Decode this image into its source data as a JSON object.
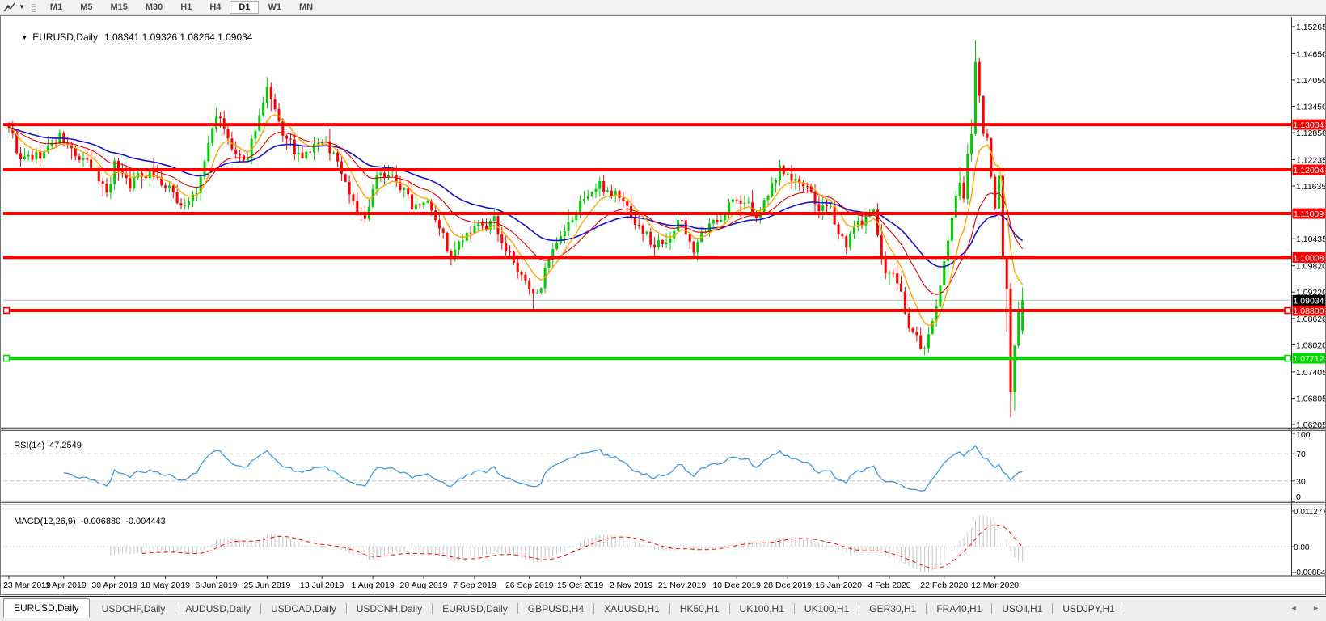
{
  "icons": {
    "title_caret": "▼",
    "dropdown_caret": "▼",
    "scroll_left": "◄",
    "scroll_right": "►"
  },
  "toolbar": {
    "timeframes": [
      "M1",
      "M5",
      "M15",
      "M30",
      "H1",
      "H4",
      "D1",
      "W1",
      "MN"
    ],
    "active_timeframe": "D1"
  },
  "chart": {
    "symbol_title": "EURUSD,Daily",
    "ohlc_text": "1.08341 1.09326 1.08264 1.09034"
  },
  "indicators": {
    "rsi": {
      "label": "RSI(14)",
      "value": "47.2549",
      "period": 14,
      "levels": [
        70,
        30
      ],
      "scale_labels": [
        "100",
        "70",
        "30",
        "0"
      ],
      "line_color": "#3E9BDD",
      "level_color": "#C4C4C4"
    },
    "macd": {
      "label": "MACD(12,26,9)",
      "main_value": "-0.006880",
      "signal_value": "-0.004443",
      "params": [
        12,
        26,
        9
      ],
      "scale_labels": [
        "0.011277",
        "0.00",
        "-0.008845"
      ],
      "histogram_color": "#C6C6C6",
      "signal_color": "#FF0000"
    }
  },
  "chart_data": {
    "type": "candlestick",
    "symbol": "EURUSD",
    "timeframe": "Daily",
    "current_bar": {
      "open": 1.08341,
      "high": 1.09326,
      "low": 1.08264,
      "close": 1.09034
    },
    "current_price": {
      "price": 1.09034,
      "label": "1.09034",
      "line_color": "#BBBBBB",
      "tag_color": "#000000"
    },
    "num_candles": 260,
    "up_color": "#00CC00",
    "down_color": "#FE0000",
    "price_axis_ticks": [
      "1.15265",
      "1.14650",
      "1.14050",
      "1.13450",
      "1.12850",
      "1.12235",
      "1.11635",
      "1.10435",
      "1.09820",
      "1.09220",
      "1.08620",
      "1.08020",
      "1.07405",
      "1.06805",
      "1.06205"
    ],
    "horizontal_lines": [
      {
        "price": 1.13034,
        "label": "1.13034",
        "color": "#FF0000",
        "handles": false
      },
      {
        "price": 1.12004,
        "label": "1.12004",
        "color": "#FF0000",
        "handles": false
      },
      {
        "price": 1.11009,
        "label": "1.11009",
        "color": "#FF0000",
        "handles": false
      },
      {
        "price": 1.10008,
        "label": "1.10008",
        "color": "#FF0000",
        "handles": false
      },
      {
        "price": 1.088,
        "label": "1.08800",
        "color": "#FF0000",
        "handles": true
      },
      {
        "price": 1.07712,
        "label": "1.07712",
        "color": "#00DC00",
        "handles": true
      }
    ],
    "moving_averages": [
      {
        "period": 40,
        "color": "#1414CC",
        "width": 1.6,
        "name": "ma-slow-line"
      },
      {
        "period": 20,
        "color": "#E00000",
        "width": 1.1,
        "name": "ma-medium-line"
      },
      {
        "period": 8,
        "color": "#FFA500",
        "width": 1.4,
        "name": "ma-fast-line"
      }
    ],
    "x_axis_labels": [
      {
        "text": "23 Mar 2019",
        "index": 0
      },
      {
        "text": "11 Apr 2019",
        "index": 14
      },
      {
        "text": "30 Apr 2019",
        "index": 27
      },
      {
        "text": "18 May 2019",
        "index": 40
      },
      {
        "text": "6 Jun 2019",
        "index": 53
      },
      {
        "text": "25 Jun 2019",
        "index": 66
      },
      {
        "text": "13 Jul 2019",
        "index": 80
      },
      {
        "text": "1 Aug 2019",
        "index": 93
      },
      {
        "text": "20 Aug 2019",
        "index": 106
      },
      {
        "text": "7 Sep 2019",
        "index": 119
      },
      {
        "text": "26 Sep 2019",
        "index": 133
      },
      {
        "text": "15 Oct 2019",
        "index": 146
      },
      {
        "text": "2 Nov 2019",
        "index": 159
      },
      {
        "text": "21 Nov 2019",
        "index": 172
      },
      {
        "text": "10 Dec 2019",
        "index": 186
      },
      {
        "text": "28 Dec 2019",
        "index": 199
      },
      {
        "text": "16 Jan 2020",
        "index": 212
      },
      {
        "text": "4 Feb 2020",
        "index": 225
      },
      {
        "text": "22 Feb 2020",
        "index": 239
      },
      {
        "text": "12 Mar 2020",
        "index": 252
      }
    ],
    "close_anchors": [
      [
        0,
        1.1305
      ],
      [
        3,
        1.1218
      ],
      [
        8,
        1.1232
      ],
      [
        13,
        1.1272
      ],
      [
        18,
        1.1222
      ],
      [
        22,
        1.119
      ],
      [
        25,
        1.1152
      ],
      [
        27,
        1.1216
      ],
      [
        31,
        1.1172
      ],
      [
        36,
        1.1205
      ],
      [
        40,
        1.116
      ],
      [
        44,
        1.1122
      ],
      [
        48,
        1.114
      ],
      [
        53,
        1.133
      ],
      [
        57,
        1.1242
      ],
      [
        60,
        1.12
      ],
      [
        63,
        1.13
      ],
      [
        66,
        1.1372
      ],
      [
        69,
        1.1292
      ],
      [
        72,
        1.1252
      ],
      [
        75,
        1.1215
      ],
      [
        79,
        1.1262
      ],
      [
        83,
        1.124
      ],
      [
        87,
        1.1152
      ],
      [
        91,
        1.108
      ],
      [
        95,
        1.12
      ],
      [
        99,
        1.118
      ],
      [
        103,
        1.1122
      ],
      [
        107,
        1.115
      ],
      [
        110,
        1.1082
      ],
      [
        113,
        1.0996
      ],
      [
        116,
        1.1036
      ],
      [
        121,
        1.1066
      ],
      [
        124,
        1.1076
      ],
      [
        127,
        1.1022
      ],
      [
        131,
        1.0952
      ],
      [
        134,
        1.0906
      ],
      [
        137,
        1.0972
      ],
      [
        142,
        1.1042
      ],
      [
        147,
        1.114
      ],
      [
        151,
        1.1162
      ],
      [
        155,
        1.1152
      ],
      [
        158,
        1.1112
      ],
      [
        161,
        1.1072
      ],
      [
        165,
        1.1026
      ],
      [
        169,
        1.1062
      ],
      [
        172,
        1.1082
      ],
      [
        175,
        1.1022
      ],
      [
        179,
        1.1062
      ],
      [
        184,
        1.113
      ],
      [
        188,
        1.1122
      ],
      [
        192,
        1.1092
      ],
      [
        195,
        1.1162
      ],
      [
        197,
        1.1212
      ],
      [
        200,
        1.1182
      ],
      [
        203,
        1.1162
      ],
      [
        206,
        1.1122
      ],
      [
        210,
        1.1096
      ],
      [
        214,
        1.1036
      ],
      [
        218,
        1.1082
      ],
      [
        221,
        1.1092
      ],
      [
        224,
        1.0976
      ],
      [
        227,
        1.0946
      ],
      [
        230,
        1.0836
      ],
      [
        234,
        1.079
      ],
      [
        236,
        1.0856
      ],
      [
        238,
        1.0932
      ],
      [
        240,
        1.1032
      ],
      [
        242,
        1.1136
      ],
      [
        243,
        1.1172
      ],
      [
        244,
        1.1136
      ],
      [
        245,
        1.1242
      ],
      [
        246,
        1.1286
      ],
      [
        247,
        1.1446
      ],
      [
        248,
        1.1366
      ],
      [
        249,
        1.1286
      ],
      [
        250,
        1.1272
      ],
      [
        251,
        1.1186
      ],
      [
        252,
        1.1112
      ],
      [
        253,
        1.1182
      ],
      [
        254,
        1.0996
      ],
      [
        255,
        1.0922
      ],
      [
        256,
        1.0692
      ],
      [
        257,
        1.0796
      ],
      [
        258,
        1.0882
      ],
      [
        259,
        1.09034
      ]
    ],
    "wick_overrides": [
      {
        "i": 66,
        "high": 1.1412
      },
      {
        "i": 134,
        "low": 1.0879
      },
      {
        "i": 234,
        "low": 1.0778
      },
      {
        "i": 247,
        "high": 1.1495
      },
      {
        "i": 255,
        "low": 1.0832
      },
      {
        "i": 256,
        "low": 1.0636
      },
      {
        "i": 257,
        "low": 1.0652
      }
    ]
  },
  "tabs": {
    "active_index": 0,
    "items": [
      "EURUSD,Daily",
      "USDCHF,Daily",
      "AUDUSD,Daily",
      "USDCAD,Daily",
      "USDCNH,Daily",
      "EURUSD,Daily",
      "GBPUSD,H4",
      "XAUUSD,H1",
      "HK50,H1",
      "UK100,H1",
      "UK100,H1",
      "GER30,H1",
      "FRA40,H1",
      "USOil,H1",
      "USDJPY,H1"
    ]
  }
}
